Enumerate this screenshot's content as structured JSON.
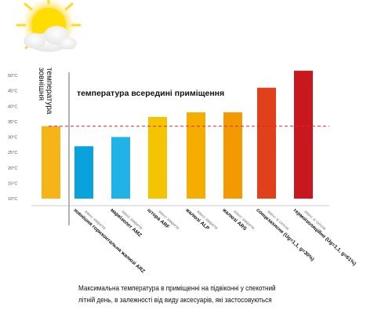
{
  "chart_data": {
    "type": "bar",
    "title": "температура всередині приміщення",
    "outdoor_label": [
      "зовнішня",
      "температура"
    ],
    "ylim": [
      10,
      50
    ],
    "yticks": [
      "10°C",
      "15°C",
      "20°C",
      "25°C",
      "30°C",
      "35°C",
      "40°C",
      "45°C",
      "50°C"
    ],
    "outdoor_value": 33.5,
    "grid": false,
    "reference_line": {
      "value": 33.5,
      "color": "#e0262a",
      "style": "dashed"
    },
    "bars": [
      {
        "value": 33.5,
        "color": "#f7b419",
        "label_lines": []
      },
      {
        "value": 27,
        "color": "#0aa2dc",
        "label_lines": [
          "вікно закрите",
          "зовнішня горизонтальна жалюзі ARZ"
        ]
      },
      {
        "value": 30,
        "color": "#20b4e6",
        "label_lines": [
          "вікно закрите",
          "маркізолет AMZ"
        ]
      },
      {
        "value": 36.5,
        "color": "#f5c400",
        "label_lines": [
          "вікно закрите",
          "штора ARF"
        ]
      },
      {
        "value": 38,
        "color": "#f4ad00",
        "label_lines": [
          "вікно закрите",
          "жалюзі ALP"
        ]
      },
      {
        "value": 38,
        "color": "#f39a00",
        "label_lines": [
          "вікно закрите",
          "жалюзі ARS"
        ]
      },
      {
        "value": 46,
        "color": "#e0401a",
        "label_lines": [
          "вікно зі склом",
          "сонцезахисне (Ug=1,1, g=30%)"
        ]
      },
      {
        "value": 51.5,
        "color": "#c8181e",
        "label_lines": [
          "вікно зі склом",
          "термоізоляційне (Ug=1,1, g=61%)"
        ]
      }
    ]
  },
  "caption": {
    "line1": "Максимальна температура в приміщенні на підвіконні у спекотний",
    "line2": "літній день, в залежності від виду аксесуарів, які застосовуються"
  }
}
